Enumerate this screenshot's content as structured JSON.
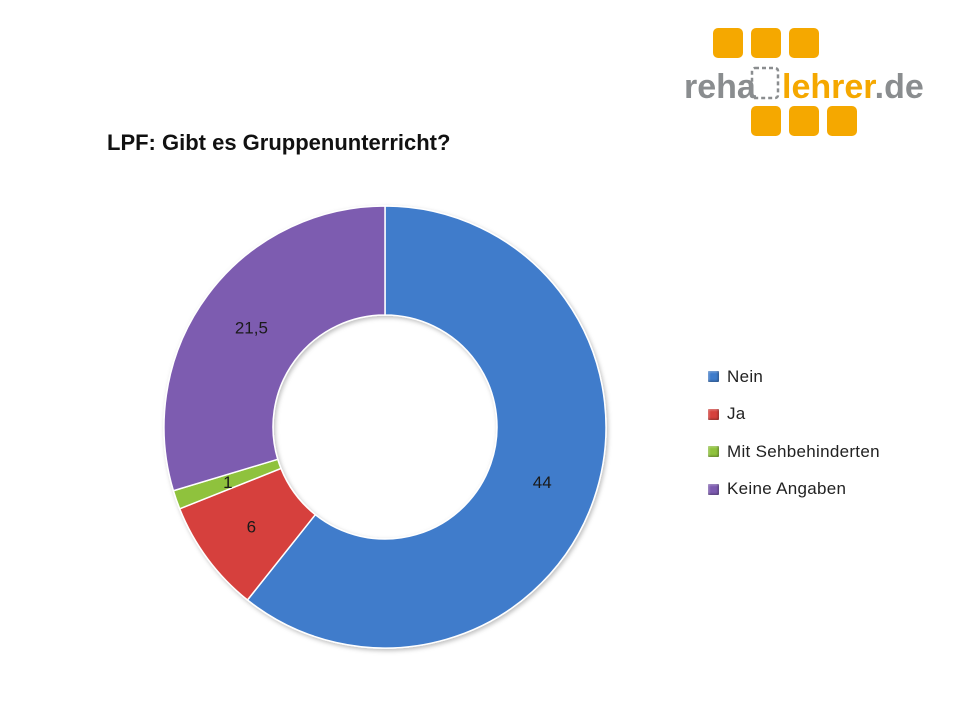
{
  "logo": {
    "part1": "reha",
    "part2": "lehrer",
    "suffix": ".de",
    "colors": {
      "brand": "#f5a800",
      "text": "#8a8d8f"
    }
  },
  "chart_data": {
    "type": "pie",
    "variant": "donut",
    "title": "LPF: Gibt es Gruppenunterricht?",
    "categories": [
      "Nein",
      "Ja",
      "Mit Sehbehinderten",
      "Keine Angaben"
    ],
    "values": [
      44,
      6,
      1,
      21.5
    ],
    "data_labels": [
      "44",
      "6",
      "1",
      "21,5"
    ],
    "colors": [
      "#3f7ccb",
      "#d6413c",
      "#8fc23c",
      "#7d5bb0"
    ],
    "legend_placement": "right",
    "start_angle": "top, clockwise"
  }
}
